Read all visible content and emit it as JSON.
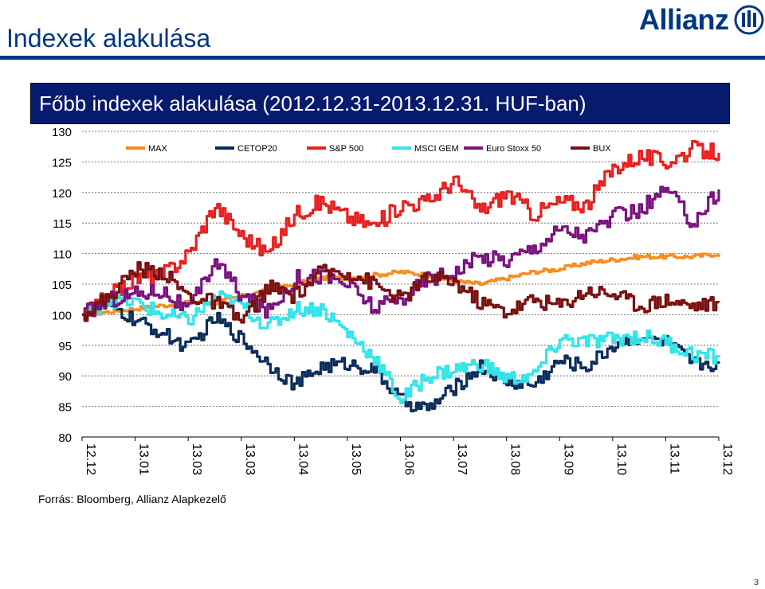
{
  "page": {
    "title": "Indexek alakulása",
    "page_number": "3"
  },
  "logo": {
    "text": "Allianz"
  },
  "colors": {
    "brand": "#003781",
    "header_bg": "#061a6e",
    "MAX": "#f68d1f",
    "CETOP20": "#0c2d5a",
    "SP500": "#e8201f",
    "MSCI_GEM": "#2fe6ea",
    "EuroStoxx50": "#7b127f",
    "BUX": "#7a1010"
  },
  "source": {
    "text": "Forrás: Bloomberg, Allianz Alapkezelő"
  },
  "chart_data": {
    "type": "line",
    "title": "Főbb indexek alakulása (2012.12.31-2013.12.31. HUF-ban)",
    "xlabel": "",
    "ylabel": "",
    "ylim": [
      80,
      130
    ],
    "yticks": [
      "80",
      "85",
      "90",
      "95",
      "100",
      "105",
      "110",
      "115",
      "120",
      "125",
      "130"
    ],
    "categories": [
      "12.12",
      "13.01",
      "13.03",
      "13.03",
      "13.04",
      "13.05",
      "13.06",
      "13.07",
      "13.08",
      "13.09",
      "13.10",
      "13.11",
      "13.12"
    ],
    "grid": "horizontal-dashed",
    "legend": "top",
    "x": [
      0,
      0.5,
      1,
      1.5,
      2,
      2.5,
      3,
      3.5,
      4,
      4.5,
      5,
      5.5,
      6,
      6.5,
      7,
      7.5,
      8,
      8.5,
      9,
      9.5,
      10,
      10.5,
      11,
      11.5,
      12
    ],
    "series": [
      {
        "name": "MAX",
        "color": "#f68d1f",
        "values": [
          100,
          100.5,
          101,
          101.5,
          102,
          102,
          103,
          104,
          105,
          106,
          106,
          106.5,
          107,
          106.5,
          105.5,
          105,
          106,
          107,
          107.5,
          108.5,
          109,
          109.5,
          109.5,
          109.5,
          110
        ]
      },
      {
        "name": "CETOP20",
        "color": "#0c2d5a",
        "values": [
          100,
          101.5,
          99,
          97,
          94.5,
          99.5,
          96,
          92,
          88.5,
          91.5,
          92,
          91,
          86,
          84.5,
          88,
          91.5,
          89,
          88.5,
          92.5,
          91.5,
          95,
          96.5,
          95.5,
          92,
          92
        ]
      },
      {
        "name": "S&P 500",
        "color": "#e8201f",
        "values": [
          100,
          103,
          106,
          106.5,
          110,
          118,
          113,
          110,
          116.5,
          118.5,
          116,
          114.5,
          118,
          118.5,
          122,
          117,
          120,
          116.5,
          118.5,
          118,
          124,
          126,
          125,
          127,
          126.5
        ]
      },
      {
        "name": "MSCI GEM",
        "color": "#2fe6ea",
        "values": [
          100,
          102.5,
          102,
          100,
          99,
          103,
          101.5,
          98,
          101,
          101,
          97,
          93,
          86,
          90,
          91,
          92,
          89.5,
          90,
          96,
          95.5,
          96,
          96.5,
          95.5,
          93.5,
          93
        ]
      },
      {
        "name": "Euro Stoxx 50",
        "color": "#7b127f",
        "values": [
          100,
          102.5,
          103.5,
          104,
          100.5,
          109,
          103,
          100.5,
          106,
          106.5,
          105,
          101,
          102.5,
          106,
          107,
          109.5,
          109,
          111,
          114,
          113,
          116,
          117,
          120.5,
          115,
          120.5
        ]
      },
      {
        "name": "BUX",
        "color": "#7a1010",
        "values": [
          100,
          103,
          107.5,
          107,
          103,
          102,
          99,
          104.5,
          103,
          107,
          107,
          105,
          102.5,
          106,
          105.5,
          102,
          100.5,
          102.5,
          101.5,
          104,
          103.5,
          101.5,
          102.5,
          101.5,
          102
        ]
      }
    ]
  }
}
